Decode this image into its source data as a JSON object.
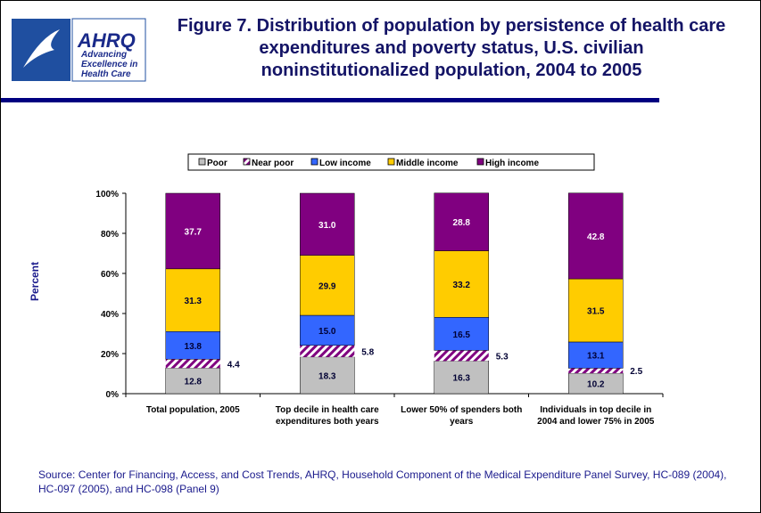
{
  "header": {
    "logo_name": "AHRQ",
    "logo_tagline": "Advancing Excellence in Health Care"
  },
  "chart_data": {
    "type": "stacked_bar",
    "title": "Figure 7. Distribution of population by persistence of health care expenditures and poverty status, U.S. civilian noninstitutionalized population, 2004 to 2005",
    "ylabel": "Percent",
    "categories": [
      "Total population, 2005",
      "Top decile in health care expenditures both years",
      "Lower 50% of spenders both years",
      "Individuals in top decile in 2004 and lower 75% in 2005"
    ],
    "series": [
      {
        "name": "Poor",
        "color": "#c0c0c0",
        "values": [
          12.8,
          18.3,
          16.3,
          10.2
        ],
        "value_labels": [
          "12.8",
          "18.3",
          "16.3",
          "10.2"
        ]
      },
      {
        "name": "Near poor",
        "color": "#800080",
        "pattern": "hatch",
        "values": [
          4.4,
          5.8,
          5.3,
          2.5
        ],
        "value_labels": [
          "4.4",
          "5.8",
          "5.3",
          "2.5"
        ]
      },
      {
        "name": "Low income",
        "color": "#3366ff",
        "values": [
          13.8,
          15.0,
          16.5,
          13.1
        ],
        "value_labels": [
          "13.8",
          "15.0",
          "16.5",
          "13.1"
        ]
      },
      {
        "name": "Middle income",
        "color": "#ffcc00",
        "values": [
          31.3,
          29.9,
          33.2,
          31.5
        ],
        "value_labels": [
          "31.3",
          "29.9",
          "33.2",
          "31.5"
        ]
      },
      {
        "name": "High income",
        "color": "#800080",
        "values": [
          37.7,
          31.0,
          28.8,
          42.8
        ],
        "value_labels": [
          "37.7",
          "31.0",
          "28.8",
          "42.8"
        ]
      }
    ],
    "ylim": [
      0,
      100
    ],
    "yticks": [
      {
        "value": 0,
        "label": "0%"
      },
      {
        "value": 20,
        "label": "20%"
      },
      {
        "value": 40,
        "label": "40%"
      },
      {
        "value": 60,
        "label": "60%"
      },
      {
        "value": 80,
        "label": "80%"
      },
      {
        "value": 100,
        "label": "100%"
      }
    ],
    "legend": "top"
  },
  "source": "Source: Center for Financing, Access, and Cost Trends, AHRQ, Household Component of the Medical Expenditure Panel Survey, HC-089 (2004), HC-097 (2005), and HC-098 (Panel 9)"
}
